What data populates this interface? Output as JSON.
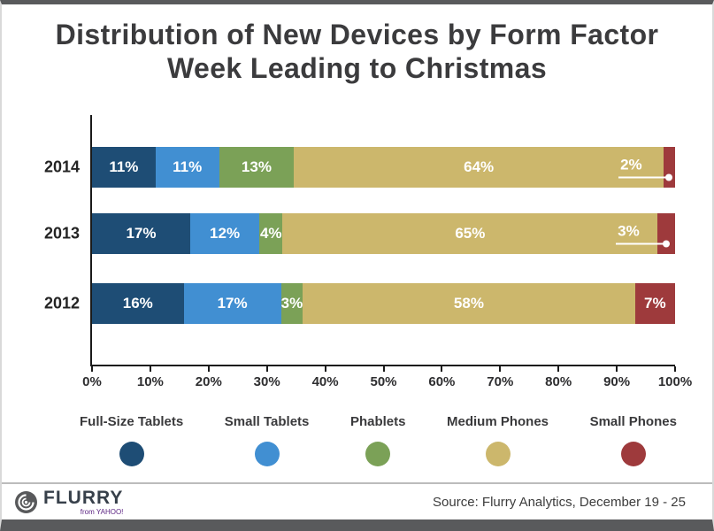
{
  "title": {
    "line1": "Distribution of New Devices by Form Factor",
    "line2": "Week Leading to Christmas"
  },
  "chart_data": {
    "type": "bar",
    "orientation": "horizontal",
    "stacked": true,
    "title": "Distribution of New Devices by Form Factor Week Leading to Christmas",
    "categories": [
      "2014",
      "2013",
      "2012"
    ],
    "series": [
      {
        "name": "Full-Size Tablets",
        "color": "#1e4d75",
        "values": [
          11,
          17,
          16
        ]
      },
      {
        "name": "Small Tablets",
        "color": "#418fd2",
        "values": [
          11,
          12,
          17
        ]
      },
      {
        "name": "Phablets",
        "color": "#7ba157",
        "values": [
          13,
          4,
          3
        ]
      },
      {
        "name": "Medium Phones",
        "color": "#ccb76c",
        "values": [
          64,
          65,
          58
        ]
      },
      {
        "name": "Small Phones",
        "color": "#9e3a3c",
        "values": [
          2,
          3,
          7
        ]
      }
    ],
    "xlim": [
      0,
      100
    ],
    "x_ticks": [
      "0%",
      "10%",
      "20%",
      "30%",
      "40%",
      "50%",
      "60%",
      "70%",
      "80%",
      "90%",
      "100%"
    ],
    "grid": false,
    "legend_position": "bottom",
    "value_label_format": "percent",
    "callouts": [
      {
        "category": "2014",
        "series": "Small Phones",
        "label": "2%"
      },
      {
        "category": "2013",
        "series": "Small Phones",
        "label": "3%"
      }
    ]
  },
  "footer": {
    "logo_text": "FLURRY",
    "logo_sub": "from YAHOO!",
    "source": "Source: Flurry Analytics, December 19 - 25"
  }
}
